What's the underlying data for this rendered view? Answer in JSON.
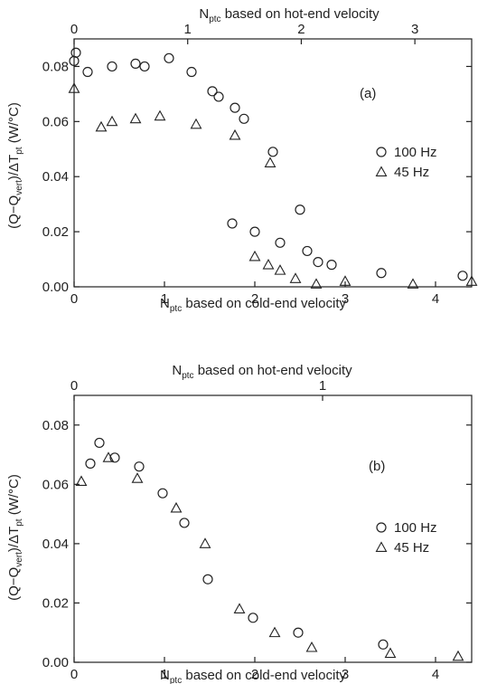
{
  "chart_data": [
    {
      "type": "scatter",
      "panel_label": "(a)",
      "xlabel": {
        "main": "N",
        "sub": "ptc",
        "rest": " based on cold-end velocity"
      },
      "x2label": {
        "main": "N",
        "sub": "ptc",
        "rest": " based on hot-end velocity"
      },
      "ylabel": {
        "a": "(Q−Q",
        "a_sub": "vert",
        "b": ")/ΔT",
        "b_sub": "pt",
        "c": "  (W/°C)"
      },
      "xlim": [
        0,
        4.4
      ],
      "ylim": [
        0,
        0.09
      ],
      "x2lim": [
        0,
        3.5
      ],
      "xticks": [
        "0",
        "1",
        "2",
        "3",
        "4"
      ],
      "yticks": [
        "0.00",
        "0.02",
        "0.04",
        "0.06",
        "0.08"
      ],
      "x2ticks": [
        "0",
        "1",
        "2",
        "3"
      ],
      "grid": false,
      "legend_position": "right",
      "series": [
        {
          "name": "100 Hz",
          "marker": "circle",
          "points": [
            [
              0.0,
              0.082
            ],
            [
              0.02,
              0.085
            ],
            [
              0.15,
              0.078
            ],
            [
              0.42,
              0.08
            ],
            [
              0.68,
              0.081
            ],
            [
              0.78,
              0.08
            ],
            [
              1.05,
              0.083
            ],
            [
              1.3,
              0.078
            ],
            [
              1.53,
              0.071
            ],
            [
              1.6,
              0.069
            ],
            [
              1.78,
              0.065
            ],
            [
              1.88,
              0.061
            ],
            [
              2.2,
              0.049
            ],
            [
              1.75,
              0.023
            ],
            [
              2.0,
              0.02
            ],
            [
              2.28,
              0.016
            ],
            [
              2.5,
              0.028
            ],
            [
              2.58,
              0.013
            ],
            [
              2.7,
              0.009
            ],
            [
              2.85,
              0.008
            ],
            [
              3.4,
              0.005
            ],
            [
              4.3,
              0.004
            ]
          ]
        },
        {
          "name": "45 Hz",
          "marker": "triangle",
          "points": [
            [
              0.0,
              0.072
            ],
            [
              0.3,
              0.058
            ],
            [
              0.42,
              0.06
            ],
            [
              0.68,
              0.061
            ],
            [
              0.95,
              0.062
            ],
            [
              1.35,
              0.059
            ],
            [
              1.78,
              0.055
            ],
            [
              2.17,
              0.045
            ],
            [
              2.0,
              0.011
            ],
            [
              2.15,
              0.008
            ],
            [
              2.28,
              0.006
            ],
            [
              2.45,
              0.003
            ],
            [
              2.68,
              0.001
            ],
            [
              3.0,
              0.002
            ],
            [
              3.75,
              0.001
            ],
            [
              4.4,
              0.002
            ]
          ]
        }
      ]
    },
    {
      "type": "scatter",
      "panel_label": "(b)",
      "xlabel": {
        "main": "N",
        "sub": "ptc",
        "rest": " based on cold-end velocity"
      },
      "x2label": {
        "main": "N",
        "sub": "ptc",
        "rest": " based on hot-end velocity"
      },
      "ylabel": {
        "a": "(Q−Q",
        "a_sub": "vert",
        "b": ")/ΔT",
        "b_sub": "pt",
        "c": "  (W/°C)"
      },
      "xlim": [
        0,
        4.4
      ],
      "ylim": [
        0,
        0.09
      ],
      "x2lim": [
        0,
        1.6
      ],
      "xticks": [
        "0",
        "1",
        "2",
        "3",
        "4"
      ],
      "yticks": [
        "0.00",
        "0.02",
        "0.04",
        "0.06",
        "0.08"
      ],
      "x2ticks": [
        "0",
        "1"
      ],
      "grid": false,
      "legend_position": "right",
      "series": [
        {
          "name": "100 Hz",
          "marker": "circle",
          "points": [
            [
              0.18,
              0.067
            ],
            [
              0.28,
              0.074
            ],
            [
              0.45,
              0.069
            ],
            [
              0.72,
              0.066
            ],
            [
              0.98,
              0.057
            ],
            [
              1.22,
              0.047
            ],
            [
              1.48,
              0.028
            ],
            [
              1.98,
              0.015
            ],
            [
              2.48,
              0.01
            ],
            [
              3.42,
              0.006
            ]
          ]
        },
        {
          "name": "45 Hz",
          "marker": "triangle",
          "points": [
            [
              0.08,
              0.061
            ],
            [
              0.38,
              0.069
            ],
            [
              0.7,
              0.062
            ],
            [
              1.13,
              0.052
            ],
            [
              1.45,
              0.04
            ],
            [
              1.83,
              0.018
            ],
            [
              2.22,
              0.01
            ],
            [
              2.63,
              0.005
            ],
            [
              3.5,
              0.003
            ],
            [
              4.25,
              0.002
            ]
          ]
        }
      ]
    }
  ]
}
